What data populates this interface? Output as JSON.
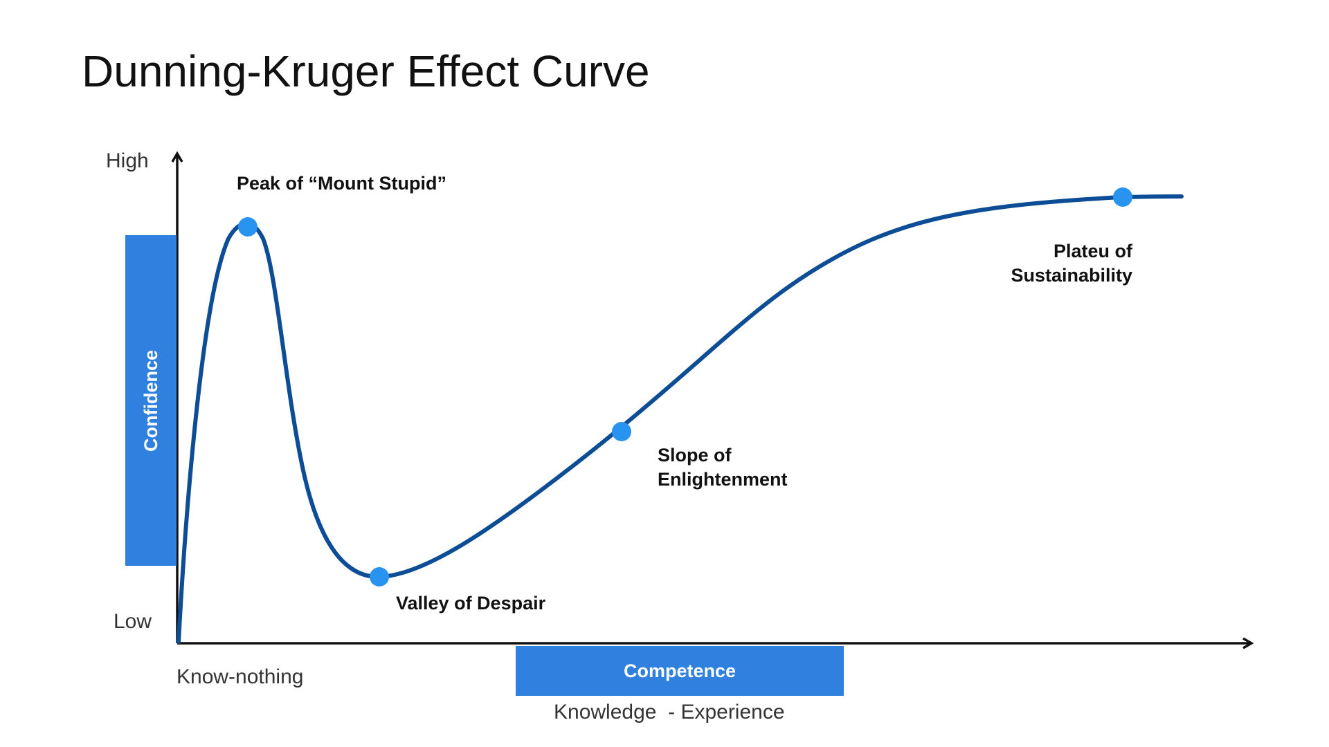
{
  "title": "Dunning-Kruger Effect Curve",
  "y_axis": {
    "high_label": "High",
    "low_label": "Low",
    "box_label": "Confidence"
  },
  "x_axis": {
    "start_label": "Know-nothing",
    "box_label": "Competence",
    "sub_label": "Knowledge  - Experience"
  },
  "stages": [
    {
      "id": "peak",
      "lines": [
        "Peak of “Mount Stupid”"
      ]
    },
    {
      "id": "valley",
      "lines": [
        "Valley of Despair"
      ]
    },
    {
      "id": "slope",
      "lines": [
        "Slope of",
        "Enlightenment"
      ]
    },
    {
      "id": "plateau",
      "lines": [
        "Plateu of",
        "Sustainability"
      ]
    }
  ],
  "colors": {
    "curve": "#0d4d96",
    "point": "#2994ef",
    "box": "#2f80df",
    "axis": "#111111"
  }
}
